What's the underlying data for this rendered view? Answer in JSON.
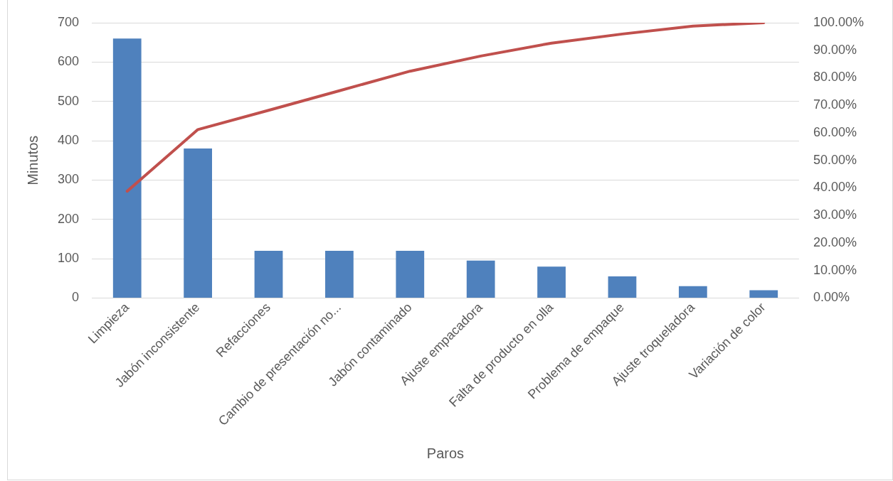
{
  "chart_data": {
    "type": "bar",
    "xlabel": "Paros",
    "ylabel": "Minutos",
    "categories": [
      "Limpieza",
      "Jabón inconsistente",
      "Refacciones",
      "Cambio de presentación no...",
      "Jabón contaminado",
      "Ajuste empacadora",
      "Falta de producto en olla",
      "Problema de empaque",
      "Ajuste troqueladora",
      "Variación de color"
    ],
    "series": [
      {
        "color": "#4f81bd",
        "values": [
          660,
          380,
          120,
          120,
          120,
          95,
          80,
          55,
          30,
          20
        ]
      },
      {
        "type": "line",
        "axis": "y2",
        "color": "#c0504d",
        "values": [
          38.8,
          61.2,
          68.2,
          75.3,
          82.4,
          87.9,
          92.6,
          95.9,
          98.8,
          100
        ]
      }
    ],
    "ylim": [
      0,
      700
    ],
    "yticks": [
      0,
      100,
      200,
      300,
      400,
      500,
      600,
      700
    ],
    "y2lim": [
      0,
      100
    ],
    "y2ticks": [
      {
        "value": 0,
        "label": "0.00%"
      },
      {
        "value": 10,
        "label": "10.00%"
      },
      {
        "value": 20,
        "label": "20.00%"
      },
      {
        "value": 30,
        "label": "30.00%"
      },
      {
        "value": 40,
        "label": "40.00%"
      },
      {
        "value": 50,
        "label": "50.00%"
      },
      {
        "value": 60,
        "label": "60.00%"
      },
      {
        "value": 70,
        "label": "70.00%"
      },
      {
        "value": 80,
        "label": "80.00%"
      },
      {
        "value": 90,
        "label": "90.00%"
      },
      {
        "value": 100,
        "label": "100.00%"
      }
    ],
    "grid": "y",
    "legend": false,
    "marker": "none"
  }
}
